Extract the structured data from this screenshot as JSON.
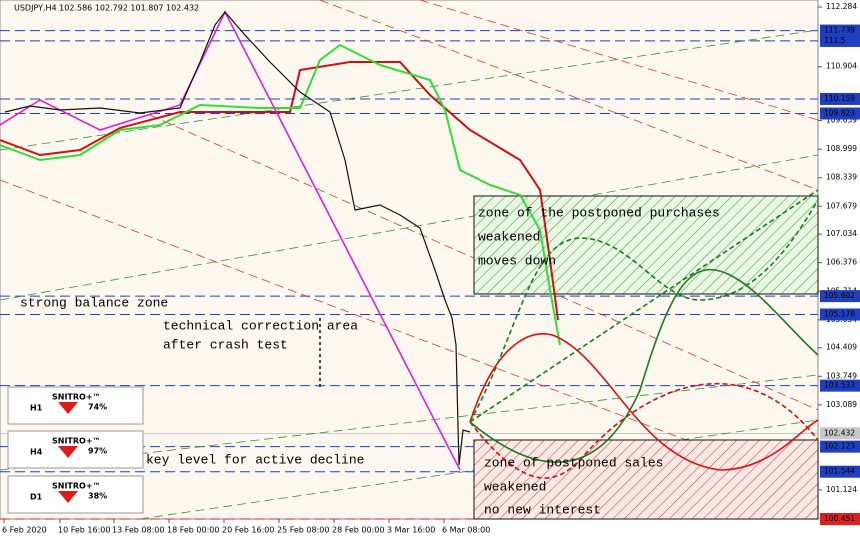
{
  "header": {
    "title": "USDJPY,H4  102.586 102.792 101.807 102.432"
  },
  "price_axis": {
    "range": [
      100.451,
      112.284
    ],
    "ticks": [
      112.284,
      110.904,
      109.659,
      108.999,
      108.339,
      107.679,
      107.034,
      106.376,
      105.714,
      105.054,
      104.409,
      103.749,
      103.089,
      101.124
    ],
    "levels": [
      {
        "value": 111.739,
        "color": "#1f3fbf"
      },
      {
        "value": 111.5,
        "color": "#1f3fbf"
      },
      {
        "value": 110.159,
        "color": "#1f3fbf"
      },
      {
        "value": 109.823,
        "color": "#1f3fbf"
      },
      {
        "value": 105.602,
        "color": "#1f3fbf"
      },
      {
        "value": 105.178,
        "color": "#1f3fbf"
      },
      {
        "value": 103.533,
        "color": "#1f3fbf"
      },
      {
        "value": 102.432,
        "color": "#c8c8c8"
      },
      {
        "value": 102.123,
        "color": "#1f3fbf"
      },
      {
        "value": 101.544,
        "color": "#1f3fbf"
      },
      {
        "value": 100.451,
        "color": "#e0201e"
      }
    ]
  },
  "time_axis": [
    "6 Feb 2020",
    "10 Feb 16:00",
    "13 Feb 08:00",
    "18 Feb 00:00",
    "20 Feb 16:00",
    "25 Feb 08:00",
    "28 Feb 00:00",
    "3 Mar 16:00",
    "6 Mar 08:00"
  ],
  "annotations": {
    "balance": "strong balance zone",
    "correction": [
      "technical correction area",
      "after crash test"
    ],
    "key_level": "key level for active decline"
  },
  "zones": {
    "purchases": [
      "zone of the postponed purchases",
      "weakened",
      "moves down"
    ],
    "sales": [
      "zone of postponed sales",
      "weakened",
      "no new interest"
    ]
  },
  "indicators": [
    {
      "timeframe": "H1",
      "brand": "SNITRO+™",
      "value": "74%"
    },
    {
      "timeframe": "H4",
      "brand": "SNITRO+™",
      "value": "97%"
    },
    {
      "timeframe": "D1",
      "brand": "SNITRO+™",
      "value": "38%"
    }
  ]
}
